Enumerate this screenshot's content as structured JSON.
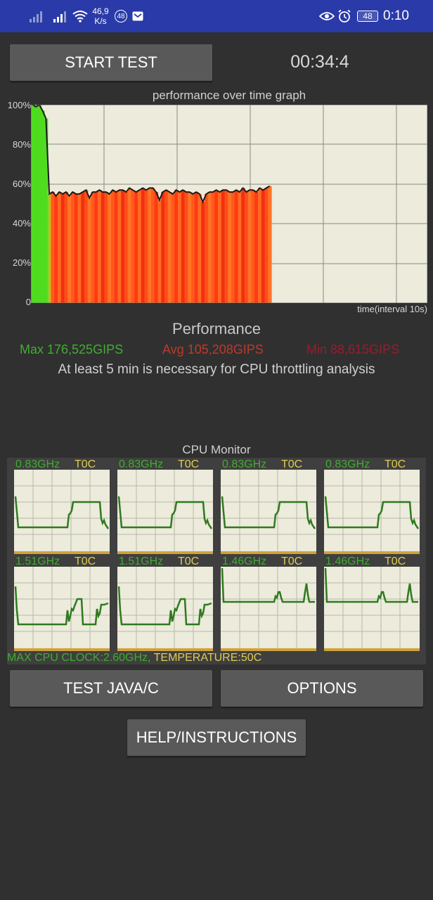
{
  "status_bar": {
    "net_speed_value": "46,9",
    "net_speed_unit": "K/s",
    "badge": "48",
    "battery": "48",
    "time": "0:10"
  },
  "controls": {
    "start_test": "START TEST",
    "timer": "00:34:4",
    "test_java": "TEST JAVA/C",
    "options": "OPTIONS",
    "help": "HELP/INSTRUCTIONS"
  },
  "graph": {
    "title": "performance over time graph",
    "y_ticks": [
      "100%",
      "80%",
      "60%",
      "40%",
      "20%",
      "0"
    ],
    "x_label": "time(interval 10s)"
  },
  "performance": {
    "title": "Performance",
    "max": "Max 176,525GIPS",
    "avg": "Avg 105,208GIPS",
    "min": "Min 88,615GIPS",
    "note": "At least 5 min is necessary for CPU throttling analysis"
  },
  "cpu_monitor": {
    "title": "CPU Monitor",
    "cores": [
      {
        "freq": "0.83GHz",
        "temp": "T0C"
      },
      {
        "freq": "0.83GHz",
        "temp": "T0C"
      },
      {
        "freq": "0.83GHz",
        "temp": "T0C"
      },
      {
        "freq": "0.83GHz",
        "temp": "T0C"
      },
      {
        "freq": "1.51GHz",
        "temp": "T0C"
      },
      {
        "freq": "1.51GHz",
        "temp": "T0C"
      },
      {
        "freq": "1.46GHz",
        "temp": "T0C"
      },
      {
        "freq": "1.46GHz",
        "temp": "T0C"
      }
    ],
    "max_clock": "MAX CPU CLOCK:2.60GHz,",
    "temperature": "TEMPERATURE:50C"
  },
  "chart_data": {
    "type": "area",
    "xlabel": "time(interval 10s)",
    "ylim": [
      0,
      100
    ],
    "grid": true,
    "series": [
      {
        "values": [
          100,
          99,
          100,
          97,
          93,
          55,
          56,
          54,
          56,
          55,
          56,
          54,
          56,
          55,
          55,
          56,
          57,
          53,
          56,
          56,
          57,
          56,
          56,
          55,
          57,
          56,
          57,
          57,
          56,
          58,
          57,
          56,
          57,
          58,
          57,
          58,
          58,
          56,
          52,
          56,
          57,
          56,
          55,
          57,
          56,
          57,
          56,
          56,
          55,
          56,
          55,
          51,
          55,
          56,
          56,
          57,
          56,
          57,
          57,
          56,
          56,
          57,
          56,
          58,
          56,
          57,
          57,
          56,
          58,
          57,
          58,
          59
        ]
      }
    ]
  }
}
